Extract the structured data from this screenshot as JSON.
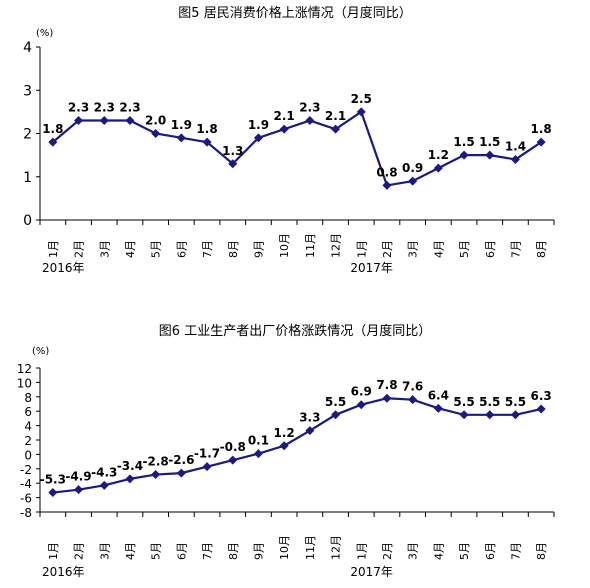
{
  "chart_data": [
    {
      "type": "line",
      "title": "图5   居民消费价格上涨情况（月度同比）",
      "unit": "(%)",
      "categories": [
        "1月",
        "2月",
        "3月",
        "4月",
        "5月",
        "6月",
        "7月",
        "8月",
        "9月",
        "10月",
        "11月",
        "12月",
        "1月",
        "2月",
        "3月",
        "4月",
        "5月",
        "6月",
        "7月",
        "8月"
      ],
      "year_labels": [
        {
          "text": "2016年",
          "at": 0
        },
        {
          "text": "2017年",
          "at": 12
        }
      ],
      "values": [
        1.8,
        2.3,
        2.3,
        2.3,
        2.0,
        1.9,
        1.8,
        1.3,
        1.9,
        2.1,
        2.3,
        2.1,
        2.5,
        0.8,
        0.9,
        1.2,
        1.5,
        1.5,
        1.4,
        1.8
      ],
      "value_labels": [
        "1.8",
        "2.3",
        "2.3",
        "2.3",
        "2.0",
        "1.9",
        "1.8",
        "1.3",
        "1.9",
        "2.1",
        "2.3",
        "2.1",
        "2.5",
        "0.8",
        "0.9",
        "1.2",
        "1.5",
        "1.5",
        "1.4",
        "1.8"
      ],
      "ylim": [
        0,
        4
      ],
      "yticks": [
        0,
        1,
        2,
        3,
        4
      ],
      "grid": false,
      "line_color": "#1a1a80"
    },
    {
      "type": "line",
      "title": "图6  工业生产者出厂价格涨跌情况（月度同比）",
      "unit": "(%)",
      "categories": [
        "1月",
        "2月",
        "3月",
        "4月",
        "5月",
        "6月",
        "7月",
        "8月",
        "9月",
        "10月",
        "11月",
        "12月",
        "1月",
        "2月",
        "3月",
        "4月",
        "5月",
        "6月",
        "7月",
        "8月"
      ],
      "year_labels": [
        {
          "text": "2016年",
          "at": 0
        },
        {
          "text": "2017年",
          "at": 12
        }
      ],
      "values": [
        -5.3,
        -4.9,
        -4.3,
        -3.4,
        -2.8,
        -2.6,
        -1.7,
        -0.8,
        0.1,
        1.2,
        3.3,
        5.5,
        6.9,
        7.8,
        7.6,
        6.4,
        5.5,
        5.5,
        5.5,
        6.3
      ],
      "value_labels": [
        "-5.3",
        "-4.9",
        "-4.3",
        "-3.4",
        "-2.8",
        "-2.6",
        "-1.7",
        "-0.8",
        "0.1",
        "1.2",
        "3.3",
        "5.5",
        "6.9",
        "7.8",
        "7.6",
        "6.4",
        "5.5",
        "5.5",
        "5.5",
        "6.3"
      ],
      "ylim": [
        -8,
        12
      ],
      "yticks": [
        -8,
        -6,
        -4,
        -2,
        0,
        2,
        4,
        6,
        8,
        10,
        12
      ],
      "grid": false,
      "line_color": "#1a1a80"
    }
  ]
}
